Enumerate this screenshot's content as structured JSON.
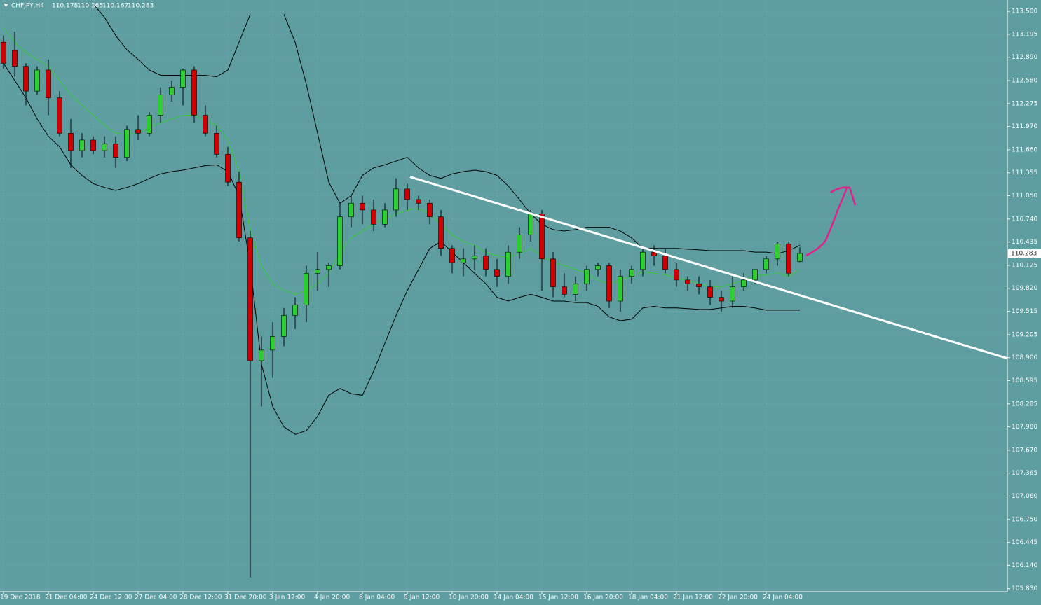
{
  "chart_data": {
    "type": "candlestick",
    "title": "CHFJPY,H4",
    "categories": [
      "19 Dec 2018",
      null,
      null,
      null,
      "21 Dec 04:00",
      null,
      null,
      null,
      "24 Dec 12:00",
      null,
      null,
      null,
      "27 Dec 04:00",
      null,
      null,
      null,
      "28 Dec 12:00",
      null,
      null,
      null,
      "31 Dec 20:00",
      null,
      null,
      null,
      "3 Jan 12:00",
      null,
      null,
      null,
      "4 Jan 20:00",
      null,
      null,
      null,
      "8 Jan 04:00",
      null,
      null,
      null,
      "9 Jan 12:00",
      null,
      null,
      null,
      "10 Jan 20:00",
      null,
      null,
      null,
      "14 Jan 04:00",
      null,
      null,
      null,
      "15 Jan 12:00",
      null,
      null,
      null,
      "16 Jan 20:00",
      null,
      null,
      null,
      "18 Jan 04:00",
      null,
      null,
      null,
      "21 Jan 12:00",
      null,
      null,
      null,
      "22 Jan 20:00",
      null,
      null,
      null,
      "24 Jan 04:00",
      null,
      null,
      null
    ],
    "open": [
      113.09,
      112.98,
      112.77,
      112.44,
      112.72,
      112.35,
      111.88,
      111.65,
      111.79,
      111.65,
      111.74,
      111.56,
      111.93,
      111.88,
      112.12,
      112.39,
      112.49,
      112.72,
      112.12,
      111.88,
      111.6,
      111.23,
      110.49,
      108.86,
      109.0,
      109.18,
      109.46,
      109.6,
      110.02,
      110.07,
      110.12,
      110.77,
      110.95,
      110.86,
      110.67,
      110.86,
      111.14,
      111.0,
      110.95,
      110.77,
      110.35,
      110.16,
      110.21,
      110.25,
      110.07,
      109.98,
      110.3,
      110.53,
      110.81,
      110.21,
      109.84,
      109.74,
      109.88,
      110.07,
      110.12,
      109.65,
      109.98,
      110.07,
      110.3,
      110.25,
      110.07,
      109.93,
      109.88,
      109.84,
      109.7,
      109.65,
      109.84,
      109.93,
      110.07,
      110.21,
      110.41,
      110.178
    ],
    "high": [
      113.18,
      113.23,
      112.81,
      112.77,
      112.86,
      112.44,
      112.07,
      111.88,
      111.84,
      111.84,
      111.84,
      111.98,
      112.12,
      112.16,
      112.49,
      112.58,
      112.74,
      112.77,
      112.25,
      111.98,
      111.7,
      111.37,
      110.58,
      109.18,
      109.37,
      109.56,
      109.7,
      110.12,
      110.3,
      110.16,
      110.95,
      111.05,
      111.05,
      111.0,
      110.95,
      111.28,
      111.21,
      111.05,
      111.0,
      110.86,
      110.39,
      110.35,
      110.39,
      110.35,
      110.21,
      110.39,
      110.63,
      110.86,
      110.86,
      110.3,
      110.02,
      109.98,
      110.12,
      110.16,
      110.16,
      110.07,
      110.12,
      110.35,
      110.39,
      110.35,
      110.16,
      109.98,
      109.98,
      109.93,
      109.79,
      109.98,
      110.02,
      110.07,
      110.25,
      110.44,
      110.44,
      110.365
    ],
    "low": [
      112.74,
      112.63,
      112.25,
      112.39,
      112.12,
      111.84,
      111.42,
      111.56,
      111.6,
      111.56,
      111.42,
      111.51,
      111.79,
      111.84,
      112.02,
      112.3,
      112.25,
      112.02,
      111.84,
      111.56,
      111.18,
      110.44,
      105.98,
      108.25,
      108.63,
      109.05,
      109.28,
      109.37,
      109.79,
      109.84,
      110.07,
      110.63,
      110.67,
      110.58,
      110.63,
      110.77,
      110.86,
      110.86,
      110.67,
      110.25,
      110.02,
      109.98,
      110.07,
      109.98,
      109.84,
      109.88,
      110.21,
      110.44,
      109.79,
      109.7,
      109.7,
      109.65,
      109.79,
      109.98,
      109.56,
      109.51,
      109.88,
      109.98,
      110.12,
      110.02,
      109.84,
      109.79,
      109.74,
      109.6,
      109.51,
      109.56,
      109.79,
      109.88,
      110.02,
      110.12,
      109.98,
      110.167
    ],
    "close": [
      112.81,
      112.77,
      112.44,
      112.72,
      112.35,
      111.88,
      111.65,
      111.79,
      111.65,
      111.74,
      111.56,
      111.93,
      111.88,
      112.12,
      112.39,
      112.49,
      112.72,
      112.12,
      111.88,
      111.6,
      111.23,
      110.49,
      108.86,
      109.0,
      109.18,
      109.46,
      109.6,
      110.02,
      110.07,
      110.12,
      110.77,
      110.95,
      110.86,
      110.67,
      110.86,
      111.14,
      111.0,
      110.95,
      110.77,
      110.35,
      110.16,
      110.21,
      110.25,
      110.07,
      109.98,
      110.3,
      110.53,
      110.81,
      110.21,
      109.84,
      109.74,
      109.88,
      110.07,
      110.12,
      109.65,
      109.98,
      110.07,
      110.3,
      110.25,
      110.07,
      109.93,
      109.88,
      109.84,
      109.7,
      109.65,
      109.84,
      109.93,
      110.07,
      110.21,
      110.41,
      110.02,
      110.283
    ],
    "up_color": "#32cd32",
    "down_color": "#d00000",
    "overlays": [
      {
        "color": "#000000",
        "values": [
          null,
          null,
          null,
          null,
          null,
          null,
          null,
          null,
          113.6,
          113.42,
          113.18,
          112.99,
          112.86,
          112.72,
          112.65,
          112.65,
          112.65,
          112.65,
          112.65,
          112.63,
          112.72,
          113.09,
          113.46,
          null,
          null,
          113.46,
          113.09,
          112.53,
          111.88,
          111.23,
          110.95,
          111.05,
          111.32,
          111.42,
          111.46,
          111.51,
          111.56,
          111.42,
          111.32,
          111.28,
          111.34,
          111.37,
          111.39,
          111.37,
          111.32,
          111.18,
          111.0,
          110.81,
          110.67,
          110.6,
          110.58,
          110.6,
          110.63,
          110.63,
          110.63,
          110.58,
          110.49,
          110.35,
          110.35,
          110.35,
          110.35,
          110.34,
          110.33,
          110.32,
          110.32,
          110.32,
          110.32,
          110.3,
          110.3,
          110.28,
          110.32,
          110.39
        ]
      },
      {
        "color": "#000000",
        "values": [
          112.81,
          112.58,
          112.35,
          112.07,
          111.84,
          111.7,
          111.46,
          111.32,
          111.21,
          111.16,
          111.12,
          111.16,
          111.21,
          111.28,
          111.34,
          111.37,
          111.39,
          111.42,
          111.45,
          111.46,
          111.37,
          111.05,
          110.12,
          108.81,
          108.25,
          107.98,
          107.88,
          107.93,
          108.12,
          108.4,
          108.49,
          108.42,
          108.4,
          108.72,
          109.09,
          109.46,
          109.79,
          110.07,
          110.35,
          110.44,
          110.3,
          110.16,
          110.02,
          109.88,
          109.7,
          109.65,
          109.7,
          109.74,
          109.7,
          109.65,
          109.65,
          109.63,
          109.63,
          109.58,
          109.44,
          109.39,
          109.41,
          109.56,
          109.58,
          109.56,
          109.56,
          109.55,
          109.54,
          109.54,
          109.56,
          109.58,
          109.58,
          109.56,
          109.53,
          109.53,
          109.53,
          109.53
        ]
      },
      {
        "color": "#32cd32",
        "values": [
          113.28,
          113.09,
          112.95,
          112.86,
          112.77,
          112.58,
          112.39,
          112.25,
          112.12,
          111.98,
          111.88,
          111.86,
          111.88,
          111.96,
          112.02,
          112.07,
          112.12,
          112.12,
          112.05,
          111.98,
          111.79,
          111.37,
          110.58,
          110.12,
          109.88,
          109.79,
          109.74,
          109.79,
          109.88,
          110.02,
          110.3,
          110.49,
          110.58,
          110.67,
          110.75,
          110.81,
          110.86,
          110.88,
          110.81,
          110.67,
          110.53,
          110.44,
          110.39,
          110.3,
          110.25,
          110.23,
          110.28,
          110.35,
          110.25,
          110.16,
          110.12,
          110.07,
          110.02,
          109.93,
          109.88,
          109.93,
          109.98,
          110.04,
          110.02,
          110.0,
          109.95,
          109.93,
          109.88,
          109.84,
          109.84,
          109.88,
          109.93,
          109.98,
          110.0,
          110.02,
          109.98,
          110.07
        ]
      }
    ],
    "trendline": {
      "color": "#ffffff",
      "x": [
        36.25,
        89.5
      ],
      "y": [
        111.3,
        108.89
      ]
    },
    "ylim": [
      105.79,
      113.65
    ],
    "yticks": [
      {
        "value": 113.5,
        "label": "113.500"
      },
      113.195,
      {
        "value": 112.89,
        "label": "112.890"
      },
      {
        "value": 112.58,
        "label": "112.580"
      },
      112.275,
      {
        "value": 111.97,
        "label": "111.970"
      },
      {
        "value": 111.66,
        "label": "111.660"
      },
      111.355,
      {
        "value": 111.05,
        "label": "111.050"
      },
      {
        "value": 110.74,
        "label": "110.740"
      },
      110.435,
      110.125,
      {
        "value": 109.82,
        "label": "109.820"
      },
      109.515,
      109.205,
      {
        "value": 108.9,
        "label": "108.900"
      },
      108.595,
      108.285,
      {
        "value": 107.98,
        "label": "107.980"
      },
      {
        "value": 107.67,
        "label": "107.670"
      },
      107.365,
      {
        "value": 107.06,
        "label": "107.060"
      },
      {
        "value": 106.75,
        "label": "106.750"
      },
      106.445,
      {
        "value": 106.14,
        "label": "106.140"
      },
      {
        "value": 105.83,
        "label": "105.830"
      }
    ],
    "grid": true
  }
}
